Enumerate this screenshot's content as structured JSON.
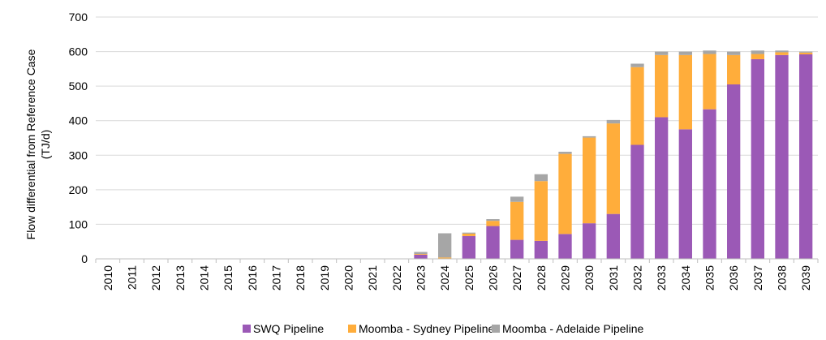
{
  "chart_data": {
    "type": "bar",
    "stacked": true,
    "categories": [
      "2010",
      "2011",
      "2012",
      "2013",
      "2014",
      "2015",
      "2016",
      "2017",
      "2018",
      "2019",
      "2020",
      "2021",
      "2022",
      "2023",
      "2024",
      "2025",
      "2026",
      "2027",
      "2028",
      "2029",
      "2030",
      "2031",
      "2032",
      "2033",
      "2034",
      "2035",
      "2036",
      "2037",
      "2038",
      "2039"
    ],
    "series": [
      {
        "name": "SWQ Pipeline",
        "color": "#9b59b6",
        "values": [
          0,
          0,
          0,
          0,
          0,
          0,
          0,
          0,
          0,
          0,
          0,
          0,
          0,
          12,
          0,
          66,
          95,
          55,
          52,
          72,
          103,
          130,
          330,
          410,
          375,
          433,
          505,
          578,
          590,
          592
        ]
      },
      {
        "name": "Moomba - Sydney Pipeline",
        "color": "#ffad3b",
        "values": [
          0,
          0,
          0,
          0,
          0,
          0,
          0,
          0,
          0,
          0,
          0,
          0,
          0,
          2,
          4,
          7,
          15,
          110,
          173,
          232,
          248,
          262,
          225,
          180,
          215,
          160,
          85,
          15,
          8,
          5
        ]
      },
      {
        "name": "Moomba - Adelaide Pipeline",
        "color": "#a6a6a6",
        "values": [
          0,
          0,
          0,
          0,
          0,
          0,
          0,
          0,
          0,
          0,
          0,
          0,
          0,
          6,
          70,
          3,
          5,
          15,
          20,
          6,
          4,
          10,
          10,
          10,
          10,
          10,
          10,
          10,
          5,
          3
        ]
      }
    ],
    "xlabel": "",
    "ylabel_lines": [
      "Flow differential from Reference Case",
      "(TJ/d)"
    ],
    "ylim": [
      0,
      700
    ],
    "yticks": [
      "0",
      "100",
      "200",
      "300",
      "400",
      "500",
      "600",
      "700"
    ],
    "ytick_values": [
      0,
      100,
      200,
      300,
      400,
      500,
      600,
      700
    ],
    "grid": true,
    "grid_color": "#d9d9d9",
    "legend_position": "bottom"
  }
}
